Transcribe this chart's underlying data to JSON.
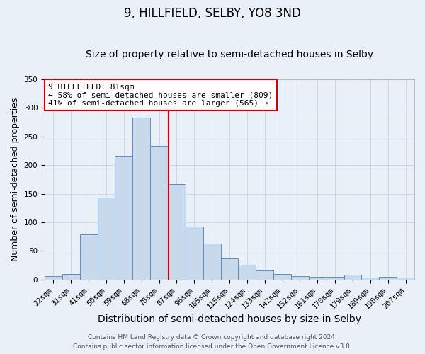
{
  "title": "9, HILLFIELD, SELBY, YO8 3ND",
  "subtitle": "Size of property relative to semi-detached houses in Selby",
  "xlabel": "Distribution of semi-detached houses by size in Selby",
  "ylabel": "Number of semi-detached properties",
  "categories": [
    "22sqm",
    "31sqm",
    "41sqm",
    "50sqm",
    "59sqm",
    "68sqm",
    "78sqm",
    "87sqm",
    "96sqm",
    "105sqm",
    "115sqm",
    "124sqm",
    "133sqm",
    "142sqm",
    "152sqm",
    "161sqm",
    "170sqm",
    "179sqm",
    "189sqm",
    "198sqm",
    "207sqm"
  ],
  "values": [
    6,
    9,
    79,
    143,
    215,
    283,
    234,
    167,
    93,
    63,
    37,
    26,
    16,
    10,
    6,
    5,
    4,
    8,
    3,
    4,
    3
  ],
  "bar_color": "#c9d9ec",
  "bar_edge_color": "#5b8fc9",
  "vline_x_index": 6.55,
  "annotation_line1": "9 HILLFIELD: 81sqm",
  "annotation_line2": "← 58% of semi-detached houses are smaller (809)",
  "annotation_line3": "41% of semi-detached houses are larger (565) →",
  "annotation_box_color": "#ffffff",
  "annotation_box_edge_color": "#cc0000",
  "vline_color": "#cc0000",
  "grid_color": "#d0d8e8",
  "background_color": "#eaf0f8",
  "footer_line1": "Contains HM Land Registry data © Crown copyright and database right 2024.",
  "footer_line2": "Contains public sector information licensed under the Open Government Licence v3.0.",
  "ylim": [
    0,
    350
  ],
  "title_fontsize": 12,
  "subtitle_fontsize": 10,
  "xlabel_fontsize": 10,
  "ylabel_fontsize": 9,
  "tick_fontsize": 7.5,
  "annotation_fontsize": 8,
  "footer_fontsize": 6.5
}
